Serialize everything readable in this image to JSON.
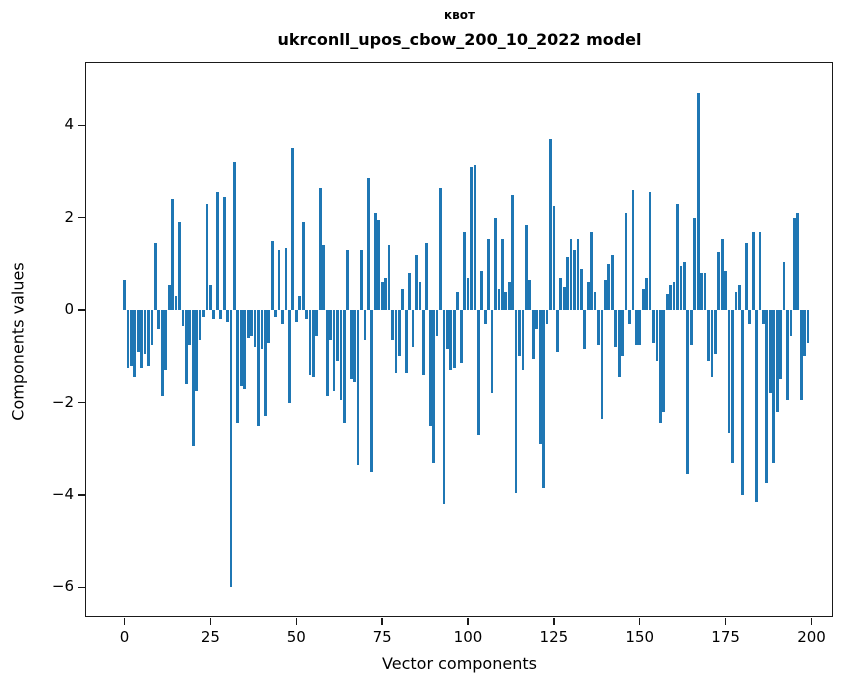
{
  "chart_data": {
    "type": "bar",
    "title": "квот",
    "subtitle": "ukrconll_upos_cbow_200_10_2022 model",
    "xlabel": "Vector components",
    "ylabel": "Components values",
    "legend": null,
    "grid": false,
    "bar_color": "#1f77b4",
    "axis_color": "#1a1a1a",
    "x_ticks": [
      0,
      25,
      50,
      75,
      100,
      125,
      150,
      175,
      200
    ],
    "y_ticks": [
      4,
      2,
      0,
      -2,
      -4,
      -6
    ],
    "xlim": [
      -11.5,
      206.4
    ],
    "ylim": [
      -6.64,
      5.37
    ],
    "n_components": 200,
    "values": [
      0.65,
      -1.25,
      -1.2,
      -1.45,
      -0.9,
      -1.25,
      -0.95,
      -1.2,
      -0.75,
      1.45,
      -0.4,
      -1.85,
      -1.3,
      0.55,
      2.4,
      0.3,
      1.9,
      -0.35,
      -1.6,
      -0.75,
      -2.95,
      -1.75,
      -0.65,
      -0.15,
      2.3,
      0.55,
      -0.2,
      2.55,
      -0.2,
      2.45,
      -0.25,
      -6.0,
      3.2,
      -2.45,
      -1.65,
      -1.7,
      -0.6,
      -0.55,
      -0.8,
      -2.5,
      -0.85,
      -2.3,
      -0.7,
      1.5,
      -0.15,
      1.3,
      -0.3,
      1.35,
      -2.0,
      3.5,
      -0.25,
      0.3,
      1.9,
      -0.2,
      -1.4,
      -1.45,
      -0.55,
      2.65,
      1.4,
      -1.85,
      -0.65,
      -1.75,
      -1.1,
      -1.95,
      -2.45,
      1.3,
      -1.5,
      -1.55,
      -3.35,
      1.3,
      -0.65,
      2.85,
      -3.5,
      2.1,
      1.95,
      0.6,
      0.7,
      1.4,
      -0.65,
      -1.35,
      -1.0,
      0.45,
      -1.35,
      0.8,
      -0.8,
      1.2,
      0.6,
      -1.4,
      1.45,
      -2.5,
      -3.3,
      -0.55,
      2.65,
      -4.2,
      -0.85,
      -1.3,
      -1.25,
      0.4,
      -1.15,
      1.7,
      0.7,
      3.1,
      3.15,
      -2.7,
      0.85,
      -0.3,
      1.55,
      -1.8,
      2.0,
      0.45,
      1.55,
      0.4,
      0.6,
      2.5,
      -3.95,
      -1.0,
      -1.3,
      1.85,
      0.65,
      -1.05,
      -0.4,
      -2.9,
      -3.85,
      -0.3,
      3.7,
      2.25,
      -0.9,
      0.7,
      0.5,
      1.15,
      1.55,
      1.3,
      1.55,
      0.9,
      -0.85,
      0.6,
      1.7,
      0.4,
      -0.75,
      -2.35,
      0.65,
      1.0,
      1.2,
      -0.8,
      -1.45,
      -1.0,
      2.1,
      -0.3,
      2.6,
      -0.75,
      -0.75,
      0.45,
      0.7,
      2.55,
      -0.7,
      -1.1,
      -2.45,
      -2.2,
      0.35,
      0.55,
      0.6,
      2.3,
      0.95,
      1.05,
      -3.55,
      -0.75,
      2.0,
      4.7,
      0.8,
      0.8,
      -1.1,
      -1.45,
      -0.95,
      1.25,
      1.55,
      0.85,
      -2.65,
      -3.3,
      0.4,
      0.55,
      -4.0,
      1.45,
      -0.3,
      1.7,
      -4.15,
      1.7,
      -0.3,
      -3.75,
      -1.8,
      -3.3,
      -2.2,
      -1.5,
      1.05,
      -1.95,
      -0.55,
      2.0,
      2.1,
      -1.95,
      -1.0,
      -0.7
    ]
  }
}
